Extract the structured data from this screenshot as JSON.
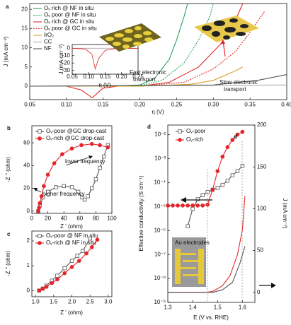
{
  "chart_data": [
    {
      "type": "line",
      "panel": "a",
      "xlabel": "η (V)",
      "ylabel": "J (mA cm⁻²)",
      "xlim": [
        0.05,
        0.4
      ],
      "ylim": [
        -3.5,
        21.5
      ],
      "xticks": [
        0.05,
        {
          "value": 0.1,
          "label": "0.10"
        },
        0.15,
        {
          "value": 0.2,
          "label": "0.20"
        },
        0.25,
        {
          "value": 0.3,
          "label": "0.30"
        },
        0.35,
        {
          "value": 0.4,
          "label": "0.40"
        }
      ],
      "yticks": [
        0,
        5,
        10,
        15,
        20
      ],
      "legend": "top-left",
      "series": [
        {
          "name": "Oᵥ rich  @ NF in situ",
          "color": "#2ca05a",
          "style": "solid",
          "x": [
            0.05,
            0.15,
            0.2,
            0.22,
            0.24,
            0.25,
            0.26,
            0.265
          ],
          "values": [
            0,
            0,
            0.3,
            2,
            7,
            12,
            18,
            21.5
          ]
        },
        {
          "name": "Oᵥ poor  @ NF in situ",
          "color": "#2ca05a",
          "style": "dotted",
          "x": [
            0.05,
            0.2,
            0.23,
            0.26,
            0.28,
            0.295,
            0.3
          ],
          "values": [
            0,
            0.1,
            1.5,
            6,
            12,
            18,
            21.5
          ]
        },
        {
          "name": "Oᵥ rich  @ GC in situ",
          "color": "#e3262a",
          "style": "solid",
          "x": [
            0.05,
            0.1,
            0.12,
            0.135,
            0.15,
            0.17,
            0.2,
            0.24,
            0.28,
            0.31,
            0.33,
            0.34
          ],
          "values": [
            0,
            0,
            -1,
            -3,
            -0.5,
            0,
            0,
            1,
            5,
            11,
            17,
            21.5
          ]
        },
        {
          "name": "Oᵥ poor  @ GC in situ",
          "color": "#e3262a",
          "style": "dotted",
          "x": [
            0.05,
            0.2,
            0.26,
            0.3,
            0.33,
            0.35,
            0.37
          ],
          "values": [
            0,
            0,
            1,
            4.5,
            9,
            14,
            19.5
          ]
        },
        {
          "name": "IrO₂",
          "color": "#d9a024",
          "style": "solid",
          "x": [
            0.05,
            0.2,
            0.27,
            0.3,
            0.33,
            0.34
          ],
          "values": [
            0,
            0,
            0.5,
            1.5,
            4,
            5
          ]
        },
        {
          "name": "CC",
          "color": "#aaaaaa",
          "style": "solid",
          "x": [
            0.05,
            0.4
          ],
          "values": [
            0,
            0.3
          ]
        },
        {
          "name": "NF",
          "color": "#555555",
          "style": "solid",
          "x": [
            0.05,
            0.3,
            0.36,
            0.4
          ],
          "values": [
            0,
            0.3,
            1.5,
            3
          ]
        }
      ],
      "annotations": [
        "Fast electronic",
        "transport",
        "Slow electronic",
        "transport"
      ]
    },
    {
      "type": "line",
      "xlabel": "η (V)",
      "ylabel": "J (mA cm⁻²)",
      "xlim": [
        0.05,
        0.25
      ],
      "ylim": [
        -35,
        5
      ],
      "xticks": [
        0.05,
        {
          "value": 0.1,
          "label": "0.10"
        },
        0.15,
        {
          "value": 0.2,
          "label": "0.20"
        },
        0.25
      ],
      "yticks": [
        0,
        -10,
        -20,
        -30
      ],
      "series": [
        {
          "color": "#aaaaaa",
          "style": "solid",
          "x": [
            0.05,
            0.25
          ],
          "values": [
            0,
            0
          ]
        },
        {
          "color": "#e3262a",
          "style": "solid",
          "x": [
            0.05,
            0.09,
            0.11,
            0.12,
            0.13,
            0.15,
            0.18,
            0.25
          ],
          "values": [
            0,
            -1,
            -8,
            -28,
            -14,
            -3,
            -0.5,
            0
          ]
        }
      ]
    },
    {
      "type": "line",
      "panel": "b",
      "xlabel": "Z ' (ohm)",
      "ylabel": "-Z '' (ohm)",
      "xlim": [
        0,
        100
      ],
      "ylim": [
        -2,
        75
      ],
      "xticks": [
        0,
        20,
        40,
        60,
        80,
        100
      ],
      "yticks": [
        0,
        20,
        40,
        60
      ],
      "legend": "top-left",
      "series": [
        {
          "name": "Oᵥ-poor  @GC drop-cast",
          "color": "#555555",
          "marker": "open-square",
          "style": "solid",
          "x": [
            8,
            10,
            14,
            20,
            30,
            40,
            50,
            58,
            63,
            66,
            70,
            75,
            80,
            85,
            90,
            95
          ],
          "values": [
            0,
            5,
            12,
            17,
            21,
            22,
            21,
            17,
            12,
            10,
            13,
            20,
            28,
            38,
            48,
            58
          ]
        },
        {
          "name": "Oᵥ-rich  @GC drop-cast",
          "color": "#e3262a",
          "marker": "filled-circle",
          "style": "solid",
          "x": [
            8,
            9,
            10,
            12,
            15,
            20,
            28,
            38,
            50,
            62,
            75,
            85,
            95
          ],
          "values": [
            0,
            3,
            7,
            13,
            22,
            32,
            42,
            50,
            55,
            58,
            59,
            58,
            56
          ]
        }
      ],
      "annotations": [
        "lower frequency",
        "higher frequency"
      ]
    },
    {
      "type": "line",
      "panel": "c",
      "xlabel": "Z ' (ohm)",
      "ylabel": "-Z '' (ohm)",
      "xlim": [
        0.9,
        3.1
      ],
      "ylim": [
        -0.25,
        2.4
      ],
      "xticks": [
        {
          "value": 1,
          "label": "1.0"
        },
        1.5,
        {
          "value": 2,
          "label": "2.0"
        },
        2.5,
        {
          "value": 3,
          "label": "3.0"
        }
      ],
      "yticks": [
        0,
        1,
        2
      ],
      "legend": "top-left",
      "series": [
        {
          "name": "Oᵥ-poor @ NF in situ",
          "color": "#555555",
          "marker": "open-square",
          "style": "solid",
          "x": [
            1.1,
            1.2,
            1.3,
            1.45,
            1.6,
            1.8,
            2.0,
            2.15,
            2.3,
            2.5
          ],
          "values": [
            0,
            0.08,
            0.2,
            0.4,
            0.6,
            0.9,
            1.2,
            1.4,
            1.6,
            2.1
          ]
        },
        {
          "name": "Oᵥ-rich @ NF in situ",
          "color": "#e3262a",
          "marker": "filled-circle",
          "style": "solid",
          "x": [
            1.1,
            1.2,
            1.3,
            1.45,
            1.6,
            1.8,
            2.0,
            2.2,
            2.4,
            2.55,
            2.7
          ],
          "values": [
            0,
            0.07,
            0.15,
            0.3,
            0.45,
            0.7,
            0.95,
            1.2,
            1.5,
            1.75,
            2.05
          ]
        }
      ]
    },
    {
      "type": "line",
      "panel": "d",
      "xlabel": "E (V vs. RHE)",
      "ylabel": "Effective conductivity (S cm⁻¹)",
      "y2label": "J (mA cm⁻²)",
      "xlim": [
        1.3,
        1.65
      ],
      "xticks": [
        1.3,
        1.4,
        1.5,
        1.6
      ],
      "ylog": true,
      "ylim": [
        1e-09,
        0.025
      ],
      "yticks": [
        {
          "value": 0.01,
          "label": "10⁻²"
        },
        {
          "value": 0.001,
          "label": "10⁻³"
        },
        {
          "value": 0.0001,
          "label": "10⁻⁴"
        },
        {
          "value": 1e-05,
          "label": "10⁻⁵"
        },
        {
          "value": 1e-06,
          "label": "10⁻⁶"
        },
        {
          "value": 1e-07,
          "label": "10⁻⁷"
        },
        {
          "value": 1e-08,
          "label": "10⁻⁸"
        },
        {
          "value": 1e-09,
          "label": "10⁻⁹"
        }
      ],
      "y2lim": [
        -12,
        200
      ],
      "y2ticks": [
        0,
        50,
        100,
        150,
        200
      ],
      "legend": "top-left",
      "series": [
        {
          "name": "Oᵥ-poor",
          "color": "#555555",
          "marker": "open-square",
          "style": "solid",
          "x": [
            1.38,
            1.4,
            1.42,
            1.44,
            1.46,
            1.48,
            1.5,
            1.52,
            1.54,
            1.56,
            1.58,
            1.6
          ],
          "values": [
            1.5e-06,
            8e-06,
            2e-05,
            3e-05,
            4e-05,
            5e-05,
            6e-05,
            8e-05,
            0.00012,
            0.0002,
            0.0003,
            0.0005
          ]
        },
        {
          "name": "Oᵥ-rich",
          "color": "#e3262a",
          "marker": "filled-circle",
          "style": "solid",
          "x": [
            1.3,
            1.32,
            1.34,
            1.36,
            1.38,
            1.4,
            1.42,
            1.44,
            1.46,
            1.48,
            1.5,
            1.52,
            1.54,
            1.56,
            1.58,
            1.6
          ],
          "values": [
            1.1e-05,
            1.1e-05,
            1.1e-05,
            1.1e-05,
            1.1e-05,
            1.1e-05,
            1.1e-05,
            1.1e-05,
            1.2e-05,
            5e-05,
            0.0003,
            0.0012,
            0.003,
            0.006,
            0.01,
            0.013
          ]
        },
        {
          "axis": "y2",
          "color": "#e3262a",
          "style": "solid",
          "x": [
            1.3,
            1.45,
            1.48,
            1.52,
            1.55,
            1.58,
            1.6,
            1.61
          ],
          "values": [
            0,
            0,
            1,
            8,
            20,
            45,
            75,
            115
          ]
        },
        {
          "axis": "y2",
          "color": "#555555",
          "style": "solid",
          "x": [
            1.3,
            1.48,
            1.52,
            1.56,
            1.59,
            1.61
          ],
          "values": [
            0,
            0,
            3,
            12,
            35,
            55
          ]
        }
      ],
      "annotations": [
        "Au electrodes"
      ]
    }
  ]
}
